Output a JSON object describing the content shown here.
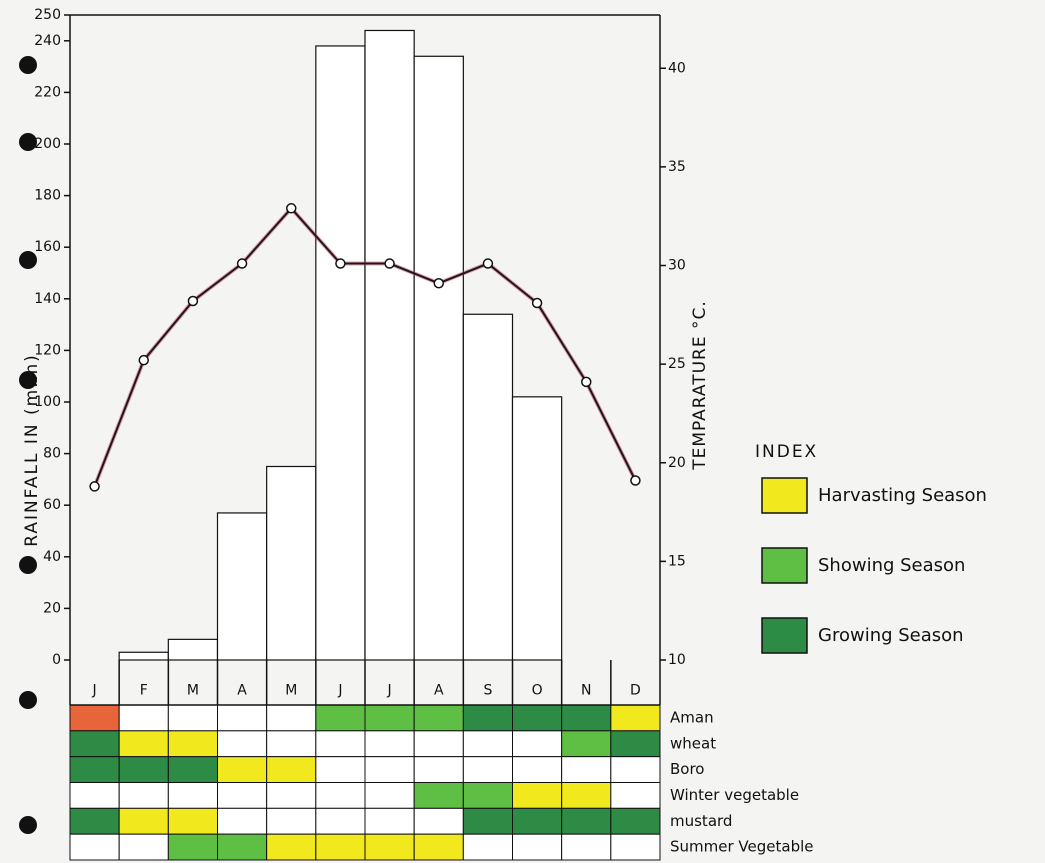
{
  "chart_data": {
    "type": "bar",
    "categories": [
      "J",
      "F",
      "M",
      "A",
      "M",
      "J",
      "J",
      "A",
      "S",
      "O",
      "N",
      "D"
    ],
    "series": [
      {
        "type": "bar",
        "color": "#ffffff",
        "values": [
          0,
          3,
          8,
          57,
          75,
          238,
          244,
          234,
          134,
          102,
          0,
          0
        ]
      },
      {
        "type": "line",
        "axis": "y2",
        "color": "#1a1a1a",
        "values": [
          18.8,
          25.2,
          28.2,
          30.1,
          32.9,
          30.1,
          30.1,
          29.1,
          30.1,
          28.1,
          24.1,
          19.1
        ]
      }
    ],
    "ylabel": "RAINFALL IN (m.m)",
    "y2label": "TEMPARATURE °C.",
    "ylim": [
      0,
      250
    ],
    "yticks": [
      0,
      20,
      40,
      60,
      80,
      100,
      120,
      140,
      160,
      180,
      200,
      220,
      240,
      250
    ],
    "y2lim": [
      10,
      42.7
    ],
    "y2ticks": [
      10,
      15,
      20,
      25,
      30,
      35,
      40
    ]
  },
  "index": {
    "title": "INDEX",
    "items": [
      {
        "label": "Harvasting Season",
        "color": "#f2e81e"
      },
      {
        "label": "Showing Season",
        "color": "#5fbf45"
      },
      {
        "label": "Growing Season",
        "color": "#2e8b45"
      }
    ]
  },
  "crop_calendar": {
    "rows": [
      {
        "label": "Aman",
        "cells": [
          "#e8643a",
          null,
          null,
          null,
          null,
          "#5fbf45",
          "#5fbf45",
          "#5fbf45",
          "#2e8b45",
          "#2e8b45",
          "#2e8b45",
          "#f2e81e"
        ]
      },
      {
        "label": "wheat",
        "cells": [
          "#2e8b45",
          "#f2e81e",
          "#f2e81e",
          null,
          null,
          null,
          null,
          null,
          null,
          null,
          "#5fbf45",
          "#2e8b45"
        ]
      },
      {
        "label": "Boro",
        "cells": [
          "#2e8b45",
          "#2e8b45",
          "#2e8b45",
          "#f2e81e",
          "#f2e81e",
          null,
          null,
          null,
          null,
          null,
          null,
          null
        ]
      },
      {
        "label": "Winter vegetable",
        "cells": [
          null,
          null,
          null,
          null,
          null,
          null,
          null,
          "#5fbf45",
          "#5fbf45",
          "#f2e81e",
          "#f2e81e",
          null
        ]
      },
      {
        "label": "mustard",
        "cells": [
          "#2e8b45",
          "#f2e81e",
          "#f2e81e",
          null,
          null,
          null,
          null,
          null,
          "#2e8b45",
          "#2e8b45",
          "#2e8b45",
          "#2e8b45"
        ]
      },
      {
        "label": "Summer Vegetable",
        "cells": [
          null,
          null,
          "#5fbf45",
          "#5fbf45",
          "#f2e81e",
          "#f2e81e",
          "#f2e81e",
          "#f2e81e",
          null,
          null,
          null,
          null
        ]
      }
    ]
  }
}
